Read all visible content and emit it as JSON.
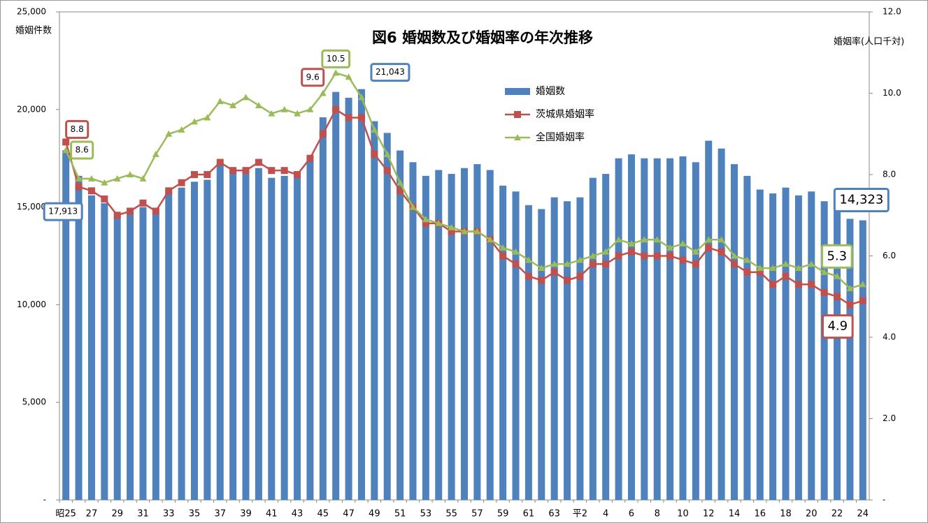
{
  "chart_data": {
    "type": "bar",
    "title": "図6  婚姻数及び婚姻率の年次推移",
    "y_label": "婚姻件数",
    "y2_label": "婚姻率(人口千対)",
    "categories": [
      "昭25",
      null,
      "27",
      null,
      "29",
      null,
      "31",
      null,
      "33",
      null,
      "35",
      null,
      "37",
      null,
      "39",
      null,
      "41",
      null,
      "43",
      null,
      "45",
      null,
      "47",
      null,
      "49",
      null,
      "51",
      null,
      "53",
      null,
      "55",
      null,
      "57",
      null,
      "59",
      null,
      "61",
      null,
      "63",
      null,
      "平2",
      null,
      "4",
      null,
      "6",
      null,
      "8",
      null,
      "10",
      null,
      "12",
      null,
      "14",
      null,
      "16",
      null,
      "18",
      null,
      "20",
      null,
      "22",
      null,
      "24"
    ],
    "ylim": [
      0,
      25000
    ],
    "yticks": [
      {
        "value": 0,
        "label": "-"
      },
      {
        "value": 5000,
        "label": "5,000"
      },
      {
        "value": 10000,
        "label": "10,000"
      },
      {
        "value": 15000,
        "label": "15,000"
      },
      {
        "value": 20000,
        "label": "20,000"
      },
      {
        "value": 25000,
        "label": "25,000"
      }
    ],
    "y2lim": [
      0,
      12
    ],
    "y2ticks": [
      {
        "value": 0,
        "label": "-"
      },
      {
        "value": 2,
        "label": "2.0"
      },
      {
        "value": 4,
        "label": "4.0"
      },
      {
        "value": 6,
        "label": "6.0"
      },
      {
        "value": 8,
        "label": "8.0"
      },
      {
        "value": 10,
        "label": "10.0"
      },
      {
        "value": 12,
        "label": "12.0"
      }
    ],
    "series": [
      {
        "name": "婚姻数",
        "type": "bar",
        "color": "#4f81bd",
        "values": [
          17913,
          16600,
          15600,
          15200,
          14600,
          14700,
          15000,
          14700,
          15800,
          16000,
          16300,
          16400,
          17200,
          16900,
          16700,
          17000,
          16500,
          16600,
          16800,
          17400,
          19600,
          20900,
          20600,
          21043,
          19400,
          18800,
          17900,
          17300,
          16600,
          16900,
          16700,
          17000,
          17200,
          16900,
          16100,
          15800,
          15100,
          14900,
          15500,
          15300,
          15500,
          16500,
          16700,
          17500,
          17700,
          17500,
          17500,
          17500,
          17600,
          17300,
          18400,
          18000,
          17200,
          16600,
          15900,
          15700,
          16000,
          15600,
          15800,
          15300,
          15000,
          14400,
          14323
        ],
        "value_labels": [
          "17,913",
          null,
          null,
          null,
          null,
          null,
          null,
          null,
          null,
          null,
          null,
          null,
          null,
          null,
          null,
          null,
          null,
          null,
          null,
          null,
          null,
          null,
          null,
          "21,043",
          null,
          null,
          null,
          null,
          null,
          null,
          null,
          null,
          null,
          null,
          null,
          null,
          null,
          null,
          null,
          null,
          null,
          null,
          null,
          null,
          null,
          null,
          null,
          null,
          null,
          null,
          null,
          null,
          null,
          null,
          null,
          null,
          null,
          null,
          null,
          null,
          null,
          null,
          "14,323"
        ]
      },
      {
        "name": "茨城県婚姻率",
        "type": "line",
        "marker": "square",
        "axis": "y2",
        "color": "#c0504d",
        "values": [
          8.8,
          7.7,
          7.6,
          7.4,
          7.0,
          7.1,
          7.3,
          7.1,
          7.6,
          7.8,
          8.0,
          8.0,
          8.3,
          8.1,
          8.1,
          8.3,
          8.1,
          8.1,
          8.0,
          8.4,
          9.0,
          9.6,
          9.4,
          9.4,
          8.5,
          8.1,
          7.6,
          7.2,
          6.8,
          6.8,
          6.6,
          6.6,
          6.6,
          6.4,
          6.0,
          5.8,
          5.5,
          5.4,
          5.6,
          5.4,
          5.5,
          5.8,
          5.8,
          6.0,
          6.1,
          6.0,
          6.0,
          6.0,
          5.9,
          5.8,
          6.2,
          6.1,
          5.8,
          5.6,
          5.6,
          5.3,
          5.5,
          5.3,
          5.3,
          5.1,
          5.0,
          4.8,
          4.9
        ],
        "value_labels": [
          "8.8",
          null,
          null,
          null,
          null,
          null,
          null,
          null,
          null,
          null,
          null,
          null,
          null,
          null,
          null,
          null,
          null,
          null,
          null,
          null,
          null,
          "9.6",
          null,
          null,
          null,
          null,
          null,
          null,
          null,
          null,
          null,
          null,
          null,
          null,
          null,
          null,
          null,
          null,
          null,
          null,
          null,
          null,
          null,
          null,
          null,
          null,
          null,
          null,
          null,
          null,
          null,
          null,
          null,
          null,
          null,
          null,
          null,
          null,
          null,
          null,
          null,
          null,
          "4.9"
        ]
      },
      {
        "name": "全国婚姻率",
        "type": "line",
        "marker": "triangle",
        "axis": "y2",
        "color": "#9bbb59",
        "values": [
          8.6,
          7.9,
          7.9,
          7.8,
          7.9,
          8.0,
          7.9,
          8.5,
          9.0,
          9.1,
          9.3,
          9.4,
          9.8,
          9.7,
          9.9,
          9.7,
          9.5,
          9.6,
          9.5,
          9.6,
          10.0,
          10.5,
          10.4,
          9.9,
          9.1,
          8.5,
          7.8,
          7.2,
          6.9,
          6.8,
          6.7,
          6.6,
          6.6,
          6.4,
          6.2,
          6.1,
          5.9,
          5.7,
          5.8,
          5.8,
          5.9,
          6.0,
          6.1,
          6.4,
          6.3,
          6.4,
          6.4,
          6.2,
          6.3,
          6.1,
          6.4,
          6.4,
          6.0,
          5.9,
          5.7,
          5.7,
          5.8,
          5.7,
          5.8,
          5.6,
          5.5,
          5.2,
          5.3
        ],
        "value_labels": [
          "8.6",
          null,
          null,
          null,
          null,
          null,
          null,
          null,
          null,
          null,
          null,
          null,
          null,
          null,
          null,
          null,
          null,
          null,
          null,
          null,
          null,
          "10.5",
          null,
          null,
          null,
          null,
          null,
          null,
          null,
          null,
          null,
          null,
          null,
          null,
          null,
          null,
          null,
          null,
          null,
          null,
          null,
          null,
          null,
          null,
          null,
          null,
          null,
          null,
          null,
          null,
          null,
          null,
          null,
          null,
          null,
          null,
          null,
          null,
          null,
          null,
          null,
          null,
          "5.3"
        ]
      }
    ]
  }
}
